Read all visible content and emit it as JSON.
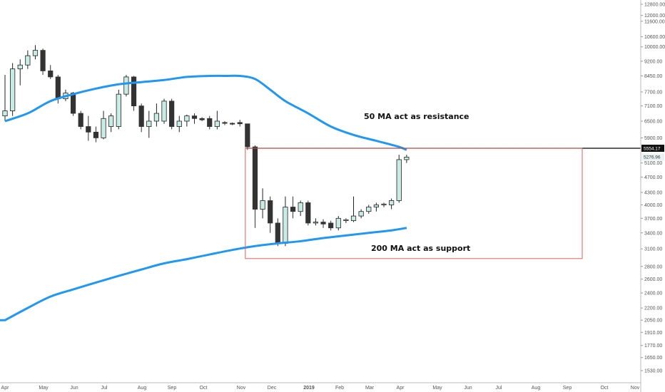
{
  "chart_data": {
    "type": "candlestick",
    "timeframe": "weekly",
    "y_scale": "log",
    "ylim": [
      1500,
      13000
    ],
    "y_ticks": [
      12800,
      12000,
      11600,
      10600,
      10000,
      9200,
      8450,
      7700,
      7100,
      6500,
      5900,
      5554.17,
      5276.96,
      5100,
      4700,
      4300,
      4000,
      3700,
      3400,
      3100,
      2800,
      2600,
      2400,
      2200,
      2050,
      1910,
      1770,
      1650,
      1530
    ],
    "x_labels": [
      "Apr",
      "May",
      "Jun",
      "Jul",
      "Aug",
      "Sep",
      "Oct",
      "Nov",
      "Dec",
      "2019",
      "Feb",
      "Mar",
      "Apr",
      "May",
      "Jun",
      "Jul",
      "Aug",
      "Sep",
      "Oct",
      "Nov"
    ],
    "candles": [
      {
        "week": 1,
        "o": 6700,
        "h": 8500,
        "l": 6500,
        "c": 6900
      },
      {
        "week": 2,
        "o": 6900,
        "h": 9100,
        "l": 6700,
        "c": 8800
      },
      {
        "week": 3,
        "o": 8800,
        "h": 9300,
        "l": 8000,
        "c": 9000
      },
      {
        "week": 4,
        "o": 9000,
        "h": 9800,
        "l": 8800,
        "c": 9500
      },
      {
        "week": 5,
        "o": 9500,
        "h": 10100,
        "l": 9300,
        "c": 9800
      },
      {
        "week": 6,
        "o": 9800,
        "h": 9900,
        "l": 8500,
        "c": 8700
      },
      {
        "week": 7,
        "o": 8700,
        "h": 9000,
        "l": 8300,
        "c": 8400
      },
      {
        "week": 8,
        "o": 8400,
        "h": 8500,
        "l": 7200,
        "c": 7400
      },
      {
        "week": 9,
        "o": 7400,
        "h": 7800,
        "l": 7300,
        "c": 7650
      },
      {
        "week": 10,
        "o": 7650,
        "h": 7700,
        "l": 6700,
        "c": 6800
      },
      {
        "week": 11,
        "o": 6800,
        "h": 6900,
        "l": 6200,
        "c": 6300
      },
      {
        "week": 12,
        "o": 6300,
        "h": 6700,
        "l": 5800,
        "c": 6100
      },
      {
        "week": 13,
        "o": 6100,
        "h": 6300,
        "l": 5750,
        "c": 5900
      },
      {
        "week": 14,
        "o": 5900,
        "h": 6900,
        "l": 5850,
        "c": 6600
      },
      {
        "week": 15,
        "o": 6300,
        "h": 6800,
        "l": 6100,
        "c": 6700
      },
      {
        "week": 16,
        "o": 6300,
        "h": 7800,
        "l": 6200,
        "c": 7600
      },
      {
        "week": 17,
        "o": 7600,
        "h": 8500,
        "l": 7500,
        "c": 8400
      },
      {
        "week": 18,
        "o": 8400,
        "h": 8450,
        "l": 6900,
        "c": 7100
      },
      {
        "week": 19,
        "o": 7100,
        "h": 7200,
        "l": 6100,
        "c": 6300
      },
      {
        "week": 20,
        "o": 6300,
        "h": 6900,
        "l": 5900,
        "c": 6500
      },
      {
        "week": 21,
        "o": 6500,
        "h": 7200,
        "l": 6300,
        "c": 6800
      },
      {
        "week": 22,
        "o": 6500,
        "h": 7400,
        "l": 6400,
        "c": 7300
      },
      {
        "week": 23,
        "o": 7300,
        "h": 7400,
        "l": 6200,
        "c": 6300
      },
      {
        "week": 24,
        "o": 6300,
        "h": 6700,
        "l": 6100,
        "c": 6500
      },
      {
        "week": 25,
        "o": 6500,
        "h": 6750,
        "l": 6300,
        "c": 6700
      },
      {
        "week": 26,
        "o": 6700,
        "h": 6800,
        "l": 6400,
        "c": 6600
      },
      {
        "week": 27,
        "o": 6600,
        "h": 6650,
        "l": 6500,
        "c": 6550
      },
      {
        "week": 28,
        "o": 6600,
        "h": 6700,
        "l": 6200,
        "c": 6300
      },
      {
        "week": 29,
        "o": 6300,
        "h": 6900,
        "l": 6200,
        "c": 6500
      },
      {
        "week": 30,
        "o": 6450,
        "h": 6500,
        "l": 6350,
        "c": 6420
      },
      {
        "week": 31,
        "o": 6420,
        "h": 6450,
        "l": 6350,
        "c": 6400
      },
      {
        "week": 32,
        "o": 6450,
        "h": 6550,
        "l": 6300,
        "c": 6400
      },
      {
        "week": 33,
        "o": 6400,
        "h": 6400,
        "l": 5500,
        "c": 5600
      },
      {
        "week": 34,
        "o": 5600,
        "h": 5650,
        "l": 3500,
        "c": 3900
      },
      {
        "week": 35,
        "o": 3900,
        "h": 4400,
        "l": 3700,
        "c": 4100
      },
      {
        "week": 36,
        "o": 4100,
        "h": 4200,
        "l": 3400,
        "c": 3600
      },
      {
        "week": 37,
        "o": 3600,
        "h": 3700,
        "l": 3150,
        "c": 3200
      },
      {
        "week": 38,
        "o": 3200,
        "h": 4200,
        "l": 3150,
        "c": 3950
      },
      {
        "week": 39,
        "o": 3950,
        "h": 4200,
        "l": 3700,
        "c": 3850
      },
      {
        "week": 40,
        "o": 3850,
        "h": 4100,
        "l": 3750,
        "c": 4050
      },
      {
        "week": 41,
        "o": 4050,
        "h": 4100,
        "l": 3550,
        "c": 3600
      },
      {
        "week": 42,
        "o": 3600,
        "h": 3700,
        "l": 3550,
        "c": 3620
      },
      {
        "week": 43,
        "o": 3620,
        "h": 3680,
        "l": 3500,
        "c": 3580
      },
      {
        "week": 44,
        "o": 3600,
        "h": 3650,
        "l": 3450,
        "c": 3500
      },
      {
        "week": 45,
        "o": 3500,
        "h": 3750,
        "l": 3450,
        "c": 3700
      },
      {
        "week": 46,
        "o": 3650,
        "h": 3700,
        "l": 3600,
        "c": 3670
      },
      {
        "week": 47,
        "o": 3650,
        "h": 4200,
        "l": 3620,
        "c": 3750
      },
      {
        "week": 48,
        "o": 3750,
        "h": 3900,
        "l": 3700,
        "c": 3850
      },
      {
        "week": 49,
        "o": 3850,
        "h": 4000,
        "l": 3800,
        "c": 3950
      },
      {
        "week": 50,
        "o": 3950,
        "h": 4050,
        "l": 3850,
        "c": 4000
      },
      {
        "week": 51,
        "o": 4000,
        "h": 4050,
        "l": 3950,
        "c": 4020
      },
      {
        "week": 52,
        "o": 4000,
        "h": 4150,
        "l": 3900,
        "c": 4100
      },
      {
        "week": 53,
        "o": 4100,
        "h": 5350,
        "l": 4050,
        "c": 5200
      },
      {
        "week": 54,
        "o": 5200,
        "h": 5350,
        "l": 5100,
        "c": 5277
      }
    ],
    "ma50": [
      [
        0,
        6500
      ],
      [
        3,
        6800
      ],
      [
        6,
        7300
      ],
      [
        9,
        7600
      ],
      [
        12,
        7850
      ],
      [
        15,
        8050
      ],
      [
        18,
        8150
      ],
      [
        21,
        8250
      ],
      [
        24,
        8400
      ],
      [
        27,
        8450
      ],
      [
        29,
        8450
      ],
      [
        31,
        8450
      ],
      [
        33,
        8300
      ],
      [
        35,
        7800
      ],
      [
        37,
        7300
      ],
      [
        40,
        6800
      ],
      [
        43,
        6300
      ],
      [
        46,
        6000
      ],
      [
        49,
        5800
      ],
      [
        52,
        5600
      ],
      [
        53,
        5500
      ]
    ],
    "ma200": [
      [
        0,
        2050
      ],
      [
        3,
        2200
      ],
      [
        6,
        2350
      ],
      [
        9,
        2450
      ],
      [
        12,
        2550
      ],
      [
        15,
        2650
      ],
      [
        18,
        2750
      ],
      [
        21,
        2850
      ],
      [
        24,
        2920
      ],
      [
        27,
        3000
      ],
      [
        30,
        3080
      ],
      [
        33,
        3150
      ],
      [
        36,
        3200
      ],
      [
        39,
        3240
      ],
      [
        42,
        3300
      ],
      [
        45,
        3350
      ],
      [
        48,
        3400
      ],
      [
        51,
        3450
      ],
      [
        53,
        3500
      ]
    ],
    "resistance_level": 5554.17,
    "last_price": 5276.96,
    "rect_range": [
      2930,
      5554.17
    ],
    "annotations": {
      "ma50_note": "50 MA act as resistance",
      "ma200_note": "200 MA act as support"
    },
    "price_badges": {
      "resistance": "5554.17",
      "last": "5276.96"
    },
    "colors": {
      "up_fill": "#c8ebe4",
      "up_stroke": "#222222",
      "down_fill": "#333333",
      "ma_line": "#2196f3",
      "rect": "#e06060",
      "level_line": "#000000",
      "badge_dark": "#111111",
      "badge_light": "#eaf3f1"
    }
  }
}
